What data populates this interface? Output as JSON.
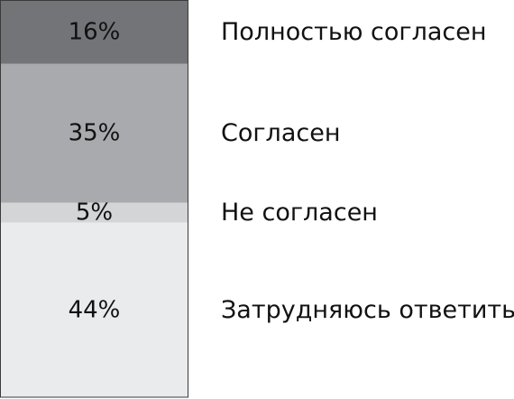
{
  "chart_data": {
    "type": "bar",
    "subtype": "100% stacked single bar",
    "categories": [
      "Полностью согласен",
      "Согласен",
      "Не согласен",
      "Затрудняюсь ответить"
    ],
    "values": [
      16,
      35,
      5,
      44
    ],
    "value_labels": [
      "16%",
      "35%",
      "5%",
      "44%"
    ],
    "colors": [
      "#737478",
      "#a8aaad",
      "#d4d5d7",
      "#e9ebed"
    ],
    "title": "",
    "xlabel": "",
    "ylabel": "",
    "ylim": [
      0,
      100
    ],
    "grid": false,
    "legend": "right"
  }
}
